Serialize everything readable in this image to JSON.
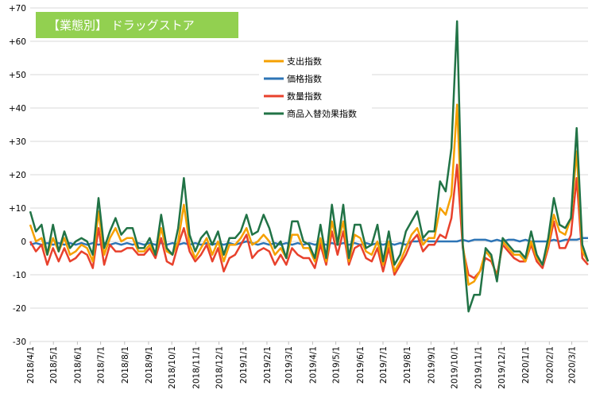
{
  "chart_data": {
    "type": "line",
    "title": "【業態別】 ドラッグストア",
    "title_bg_color": "#92D050",
    "ylim": [
      -30,
      70
    ],
    "y_ticks": [
      "+70",
      "+60",
      "+50",
      "+40",
      "+30",
      "+20",
      "+10",
      "0",
      "-10",
      "-20",
      "-30"
    ],
    "x_tick_labels": [
      "2018/4/1",
      "2018/5/1",
      "2018/6/1",
      "2018/7/1",
      "2018/8/1",
      "2018/9/1",
      "2018/10/1",
      "2018/11/1",
      "2018/12/1",
      "2019/1/1",
      "2019/2/1",
      "2019/3/1",
      "2019/4/1",
      "2019/5/1",
      "2019/6/1",
      "2019/7/1",
      "2019/8/1",
      "2019/9/1",
      "2019/10/1",
      "2019/11/1",
      "2019/12/1",
      "2020/1/1",
      "2020/2/1",
      "2020/3/1"
    ],
    "x_range": [
      "2018/4/1",
      "2020/3/22"
    ],
    "x_interval": "week",
    "grid": "horizontal",
    "legend_position": "top-center",
    "series": [
      {
        "name": "支出指数",
        "color": "#F5A000",
        "values": [
          5,
          0,
          1,
          -4,
          1,
          -3,
          1,
          -4,
          -3,
          -1,
          -2,
          -6,
          9,
          -4,
          1,
          4,
          0,
          1,
          1,
          -3,
          -3,
          -1,
          -4,
          4,
          -3,
          -4,
          0,
          11,
          -1,
          -5,
          -2,
          1,
          -4,
          0,
          -6,
          -1,
          -1,
          1,
          4,
          -1,
          0,
          2,
          0,
          -4,
          -2,
          -5,
          2,
          2,
          -2,
          -2,
          -6,
          1,
          -6,
          6,
          -1,
          6,
          -6,
          2,
          1,
          -3,
          -4,
          0,
          -7,
          0,
          -9,
          -6,
          -2,
          2,
          4,
          -1,
          1,
          1,
          10,
          8,
          14,
          41,
          -1,
          -13,
          -12,
          -9,
          -3,
          -5,
          -11,
          0,
          -2,
          -4,
          -4,
          -6,
          0,
          -5,
          -7,
          -1,
          8,
          3,
          2,
          7,
          27,
          -3,
          -6
        ]
      },
      {
        "name": "価格指数",
        "color": "#2E75B6",
        "values": [
          -1,
          -0.5,
          -1,
          -0.5,
          -1,
          -0.5,
          -1,
          -0.5,
          -1,
          -0.5,
          -1,
          -0.5,
          -1,
          -0.5,
          -1,
          -0.5,
          -1,
          -0.5,
          -1,
          -0.5,
          -1,
          -0.5,
          -1,
          -0.5,
          -1,
          -0.5,
          -1,
          -0.5,
          -1,
          -0.5,
          -1,
          -0.5,
          -1,
          -0.5,
          -1,
          -0.5,
          -1,
          -0.5,
          0,
          -0.5,
          -1,
          -0.5,
          -1,
          -0.5,
          -1,
          -0.5,
          -1,
          -0.5,
          -1,
          -0.5,
          -1,
          -0.5,
          -1,
          -0.5,
          -1,
          -0.5,
          -1,
          -0.5,
          -1,
          -0.5,
          -1,
          -0.5,
          -1,
          -0.5,
          -1,
          -0.5,
          -1,
          0,
          0,
          0.5,
          0,
          0,
          0,
          0,
          0,
          0,
          0.5,
          0,
          0.5,
          0.5,
          0.5,
          0,
          0.5,
          0,
          0.5,
          0.5,
          0,
          0.5,
          0,
          0,
          0,
          0,
          0.5,
          0,
          0.5,
          0.5,
          0.5,
          1,
          1
        ]
      },
      {
        "name": "数量指数",
        "color": "#E8412C",
        "values": [
          0,
          -3,
          -1,
          -7,
          -2,
          -6,
          -2,
          -6,
          -5,
          -3,
          -4,
          -8,
          4,
          -7,
          -1,
          -3,
          -3,
          -2,
          -2,
          -4,
          -4,
          -2,
          -5,
          1,
          -6,
          -7,
          -1,
          4,
          -3,
          -6,
          -4,
          -1,
          -6,
          -2,
          -9,
          -5,
          -4,
          -1,
          2,
          -5,
          -3,
          -2,
          -3,
          -7,
          -4,
          -7,
          -2,
          -4,
          -5,
          -5,
          -8,
          -1,
          -7,
          3,
          -4,
          3,
          -7,
          -2,
          -1,
          -5,
          -6,
          -2,
          -9,
          -2,
          -10,
          -7,
          -4,
          0,
          2,
          -3,
          -1,
          -1,
          2,
          1,
          7,
          23,
          -2,
          -10,
          -11,
          -9,
          -5,
          -6,
          -10,
          -1,
          -3,
          -5,
          -6,
          -6,
          -1,
          -6,
          -8,
          -2,
          6,
          -2,
          -2,
          2,
          19,
          -5,
          -7
        ]
      },
      {
        "name": "商品入替効果指数",
        "color": "#217346",
        "values": [
          9,
          3,
          5,
          -4,
          5,
          -3,
          3,
          -2,
          0,
          1,
          0,
          -4,
          13,
          -2,
          3,
          7,
          2,
          4,
          4,
          -2,
          -2,
          1,
          -4,
          8,
          -2,
          -4,
          4,
          19,
          2,
          -3,
          1,
          3,
          -1,
          3,
          -4,
          1,
          1,
          3,
          8,
          2,
          3,
          8,
          4,
          -2,
          0,
          -5,
          6,
          6,
          0,
          -1,
          -5,
          5,
          -5,
          11,
          -1,
          11,
          -5,
          5,
          5,
          -2,
          -1,
          5,
          -6,
          3,
          -7,
          -4,
          3,
          6,
          9,
          1,
          3,
          3,
          18,
          15,
          28,
          66,
          -1,
          -21,
          -16,
          -16,
          -2,
          -4,
          -12,
          1,
          -1,
          -3,
          -3,
          -5,
          3,
          -4,
          -7,
          1,
          13,
          5,
          4,
          7,
          34,
          -1,
          -6
        ]
      }
    ]
  }
}
